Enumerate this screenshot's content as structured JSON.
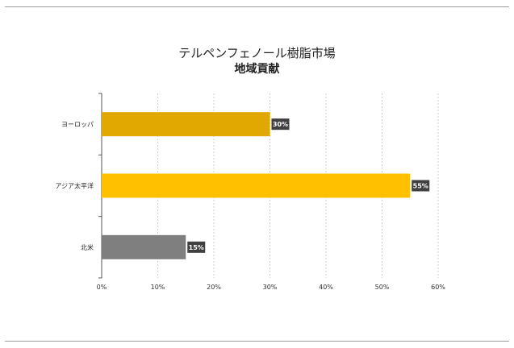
{
  "chart_data": {
    "type": "bar",
    "orientation": "horizontal",
    "title": "テルペンフェノール樹脂市場",
    "subtitle": "地域貢献",
    "categories": [
      "ヨーロッパ",
      "アジア太平洋",
      "北米"
    ],
    "values": [
      30,
      55,
      15
    ],
    "value_labels": [
      "30%",
      "55%",
      "15%"
    ],
    "bar_colors": [
      "#e0a800",
      "#ffc000",
      "#7f7f7f"
    ],
    "x_ticks": [
      "0%",
      "10%",
      "20%",
      "30%",
      "40%",
      "50%",
      "60%"
    ],
    "xlim": [
      0,
      60
    ],
    "grid": "vertical"
  }
}
